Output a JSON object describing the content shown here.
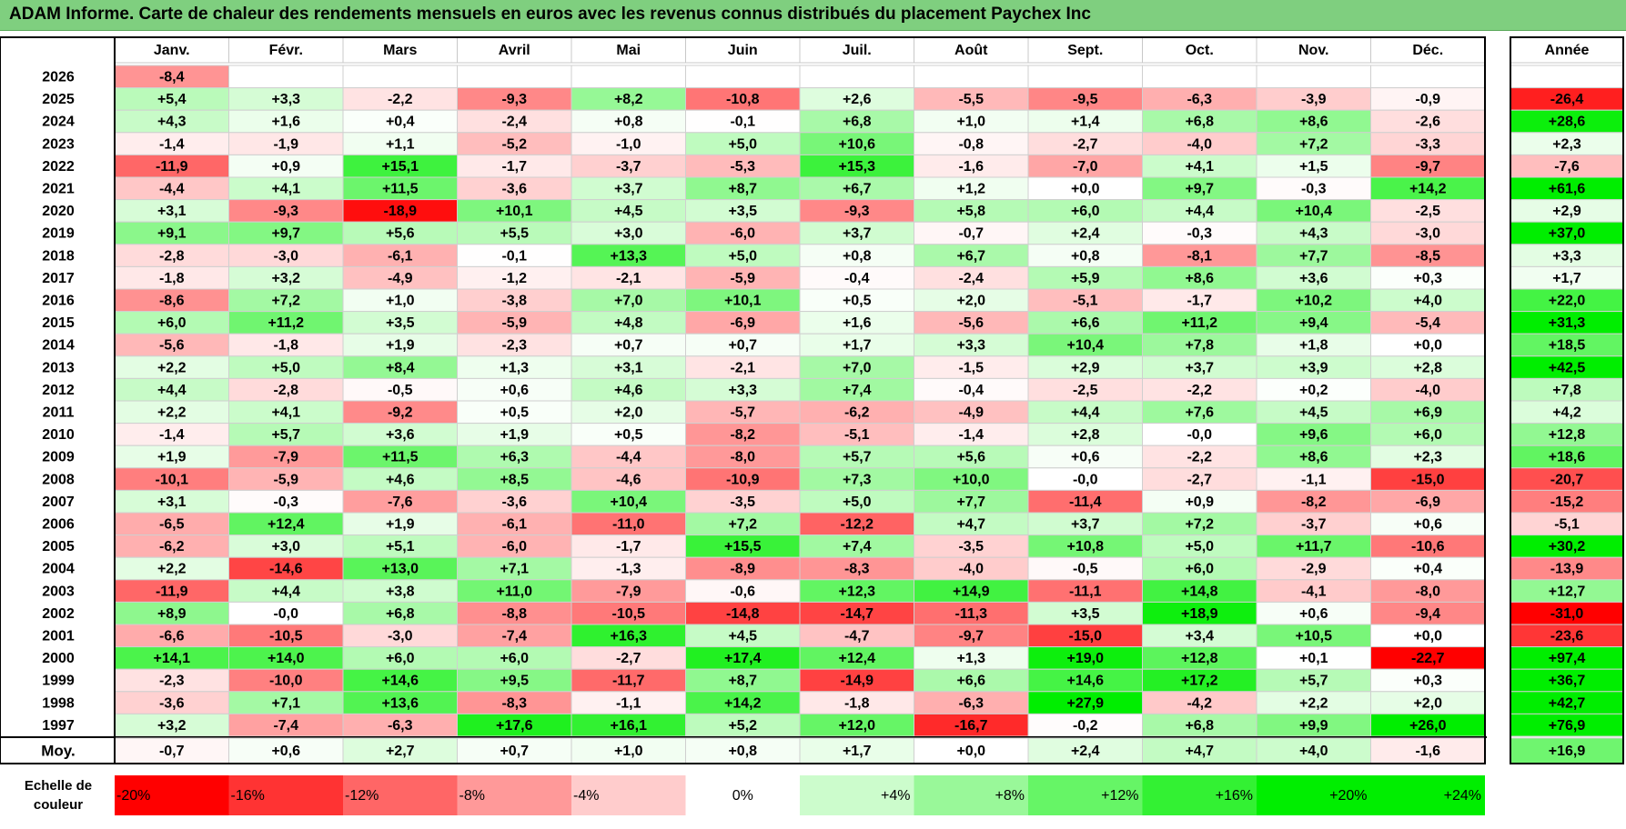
{
  "header": {
    "title": "ADAM Informe. Carte de chaleur des rendements mensuels en euros avec les revenus connus distribués du placement Paychex Inc"
  },
  "chart_data": {
    "type": "heatmap",
    "title": "ADAM Informe. Carte de chaleur des rendements mensuels en euros avec les revenus connus distribués du placement Paychex Inc",
    "months": [
      "Janv.",
      "Févr.",
      "Mars",
      "Avril",
      "Mai",
      "Juin",
      "Juil.",
      "Août",
      "Sept.",
      "Oct.",
      "Nov.",
      "Déc."
    ],
    "annual_label": "Année",
    "average_label": "Moy.",
    "scale_label_line1": "Echelle de",
    "scale_label_line2": "couleur",
    "rows": [
      {
        "year": "2026",
        "values": [
          "-8,4",
          null,
          null,
          null,
          null,
          null,
          null,
          null,
          null,
          null,
          null,
          null
        ],
        "annual": null
      },
      {
        "year": "2025",
        "values": [
          "+5,4",
          "+3,3",
          "-2,2",
          "-9,3",
          "+8,2",
          "-10,8",
          "+2,6",
          "-5,5",
          "-9,5",
          "-6,3",
          "-3,9",
          "-0,9"
        ],
        "annual": "-26,4"
      },
      {
        "year": "2024",
        "values": [
          "+4,3",
          "+1,6",
          "+0,4",
          "-2,4",
          "+0,8",
          "-0,1",
          "+6,8",
          "+1,0",
          "+1,4",
          "+6,8",
          "+8,6",
          "-2,6"
        ],
        "annual": "+28,6"
      },
      {
        "year": "2023",
        "values": [
          "-1,4",
          "-1,9",
          "+1,1",
          "-5,2",
          "-1,0",
          "+5,0",
          "+10,6",
          "-0,8",
          "-2,7",
          "-4,0",
          "+7,2",
          "-3,3"
        ],
        "annual": "+2,3"
      },
      {
        "year": "2022",
        "values": [
          "-11,9",
          "+0,9",
          "+15,1",
          "-1,7",
          "-3,7",
          "-5,3",
          "+15,3",
          "-1,6",
          "-7,0",
          "+4,1",
          "+1,5",
          "-9,7"
        ],
        "annual": "-7,6"
      },
      {
        "year": "2021",
        "values": [
          "-4,4",
          "+4,1",
          "+11,5",
          "-3,6",
          "+3,7",
          "+8,7",
          "+6,7",
          "+1,2",
          "+0,0",
          "+9,7",
          "-0,3",
          "+14,2"
        ],
        "annual": "+61,6"
      },
      {
        "year": "2020",
        "values": [
          "+3,1",
          "-9,3",
          "-18,9",
          "+10,1",
          "+4,5",
          "+3,5",
          "-9,3",
          "+5,8",
          "+6,0",
          "+4,4",
          "+10,4",
          "-2,5"
        ],
        "annual": "+2,9"
      },
      {
        "year": "2019",
        "values": [
          "+9,1",
          "+9,7",
          "+5,6",
          "+5,5",
          "+3,0",
          "-6,0",
          "+3,7",
          "-0,7",
          "+2,4",
          "-0,3",
          "+4,3",
          "-3,0"
        ],
        "annual": "+37,0"
      },
      {
        "year": "2018",
        "values": [
          "-2,8",
          "-3,0",
          "-6,1",
          "-0,1",
          "+13,3",
          "+5,0",
          "+0,8",
          "+6,7",
          "+0,8",
          "-8,1",
          "+7,7",
          "-8,5"
        ],
        "annual": "+3,3"
      },
      {
        "year": "2017",
        "values": [
          "-1,8",
          "+3,2",
          "-4,9",
          "-1,2",
          "-2,1",
          "-5,9",
          "-0,4",
          "-2,4",
          "+5,9",
          "+8,6",
          "+3,6",
          "+0,3"
        ],
        "annual": "+1,7"
      },
      {
        "year": "2016",
        "values": [
          "-8,6",
          "+7,2",
          "+1,0",
          "-3,8",
          "+7,0",
          "+10,1",
          "+0,5",
          "+2,0",
          "-5,1",
          "-1,7",
          "+10,2",
          "+4,0"
        ],
        "annual": "+22,0"
      },
      {
        "year": "2015",
        "values": [
          "+6,0",
          "+11,2",
          "+3,5",
          "-5,9",
          "+4,8",
          "-6,9",
          "+1,6",
          "-5,6",
          "+6,6",
          "+11,2",
          "+9,4",
          "-5,4"
        ],
        "annual": "+31,3"
      },
      {
        "year": "2014",
        "values": [
          "-5,6",
          "-1,8",
          "+1,9",
          "-2,3",
          "+0,7",
          "+0,7",
          "+1,7",
          "+3,3",
          "+10,4",
          "+7,8",
          "+1,8",
          "+0,0"
        ],
        "annual": "+18,5"
      },
      {
        "year": "2013",
        "values": [
          "+2,2",
          "+5,0",
          "+8,4",
          "+1,3",
          "+3,1",
          "-2,1",
          "+7,0",
          "-1,5",
          "+2,9",
          "+3,7",
          "+3,9",
          "+2,8"
        ],
        "annual": "+42,5"
      },
      {
        "year": "2012",
        "values": [
          "+4,4",
          "-2,8",
          "-0,5",
          "+0,6",
          "+4,6",
          "+3,3",
          "+7,4",
          "-0,4",
          "-2,5",
          "-2,2",
          "+0,2",
          "-4,0"
        ],
        "annual": "+7,8"
      },
      {
        "year": "2011",
        "values": [
          "+2,2",
          "+4,1",
          "-9,2",
          "+0,5",
          "+2,0",
          "-5,7",
          "-6,2",
          "-4,9",
          "+4,4",
          "+7,6",
          "+4,5",
          "+6,9"
        ],
        "annual": "+4,2"
      },
      {
        "year": "2010",
        "values": [
          "-1,4",
          "+5,7",
          "+3,6",
          "+1,9",
          "+0,5",
          "-8,2",
          "-5,1",
          "-1,4",
          "+2,8",
          "-0,0",
          "+9,6",
          "+6,0"
        ],
        "annual": "+12,8"
      },
      {
        "year": "2009",
        "values": [
          "+1,9",
          "-7,9",
          "+11,5",
          "+6,3",
          "-4,4",
          "-8,0",
          "+5,7",
          "+5,6",
          "+0,6",
          "-2,2",
          "+8,6",
          "+2,3"
        ],
        "annual": "+18,6"
      },
      {
        "year": "2008",
        "values": [
          "-10,1",
          "-5,9",
          "+4,6",
          "+8,5",
          "-4,6",
          "-10,9",
          "+7,3",
          "+10,0",
          "-0,0",
          "-2,7",
          "-1,1",
          "-15,0"
        ],
        "annual": "-20,7"
      },
      {
        "year": "2007",
        "values": [
          "+3,1",
          "-0,3",
          "-7,6",
          "-3,6",
          "+10,4",
          "-3,5",
          "+5,0",
          "+7,7",
          "-11,4",
          "+0,9",
          "-8,2",
          "-6,9"
        ],
        "annual": "-15,2"
      },
      {
        "year": "2006",
        "values": [
          "-6,5",
          "+12,4",
          "+1,9",
          "-6,1",
          "-11,0",
          "+7,2",
          "-12,2",
          "+4,7",
          "+3,7",
          "+7,2",
          "-3,7",
          "+0,6"
        ],
        "annual": "-5,1"
      },
      {
        "year": "2005",
        "values": [
          "-6,2",
          "+3,0",
          "+5,1",
          "-6,0",
          "-1,7",
          "+15,5",
          "+7,4",
          "-3,5",
          "+10,8",
          "+5,0",
          "+11,7",
          "-10,6"
        ],
        "annual": "+30,2"
      },
      {
        "year": "2004",
        "values": [
          "+2,2",
          "-14,6",
          "+13,0",
          "+7,1",
          "-1,3",
          "-8,9",
          "-8,3",
          "-4,0",
          "-0,5",
          "+6,0",
          "-2,9",
          "+0,4"
        ],
        "annual": "-13,9"
      },
      {
        "year": "2003",
        "values": [
          "-11,9",
          "+4,4",
          "+3,8",
          "+11,0",
          "-7,9",
          "-0,6",
          "+12,3",
          "+14,9",
          "-11,1",
          "+14,8",
          "-4,1",
          "-8,0"
        ],
        "annual": "+12,7"
      },
      {
        "year": "2002",
        "values": [
          "+8,9",
          "-0,0",
          "+6,8",
          "-8,8",
          "-10,5",
          "-14,8",
          "-14,7",
          "-11,3",
          "+3,5",
          "+18,9",
          "+0,6",
          "-9,4"
        ],
        "annual": "-31,0"
      },
      {
        "year": "2001",
        "values": [
          "-6,6",
          "-10,5",
          "-3,0",
          "-7,4",
          "+16,3",
          "+4,5",
          "-4,7",
          "-9,7",
          "-15,0",
          "+3,4",
          "+10,5",
          "+0,0"
        ],
        "annual": "-23,6"
      },
      {
        "year": "2000",
        "values": [
          "+14,1",
          "+14,0",
          "+6,0",
          "+6,0",
          "-2,7",
          "+17,4",
          "+12,4",
          "+1,3",
          "+19,0",
          "+12,8",
          "+0,1",
          "-22,7"
        ],
        "annual": "+97,4"
      },
      {
        "year": "1999",
        "values": [
          "-2,3",
          "-10,0",
          "+14,6",
          "+9,5",
          "-11,7",
          "+8,7",
          "-14,9",
          "+6,6",
          "+14,6",
          "+17,2",
          "+5,7",
          "+0,3"
        ],
        "annual": "+36,7"
      },
      {
        "year": "1998",
        "values": [
          "-3,6",
          "+7,1",
          "+13,6",
          "-8,3",
          "-1,1",
          "+14,2",
          "-1,8",
          "-6,3",
          "+27,9",
          "-4,2",
          "+2,2",
          "+2,0"
        ],
        "annual": "+42,7"
      },
      {
        "year": "1997",
        "values": [
          "+3,2",
          "-7,4",
          "-6,3",
          "+17,6",
          "+16,1",
          "+5,2",
          "+12,0",
          "-16,7",
          "-0,2",
          "+6,8",
          "+9,9",
          "+26,0"
        ],
        "annual": "+76,9"
      }
    ],
    "average": {
      "values": [
        "-0,7",
        "+0,6",
        "+2,7",
        "+0,7",
        "+1,0",
        "+0,8",
        "+1,7",
        "+0,0",
        "+2,4",
        "+4,7",
        "+4,0",
        "-1,6"
      ],
      "annual": "+16,9"
    },
    "scale": [
      {
        "label": "-20%",
        "value": -20
      },
      {
        "label": "-16%",
        "value": -16
      },
      {
        "label": "-12%",
        "value": -12
      },
      {
        "label": "-8%",
        "value": -8
      },
      {
        "label": "-4%",
        "value": -4
      },
      {
        "label": "0%",
        "value": 0
      },
      {
        "label": "+4%",
        "value": 4
      },
      {
        "label": "+8%",
        "value": 8
      },
      {
        "label": "+12%",
        "value": 12
      },
      {
        "label": "+16%",
        "value": 16
      },
      {
        "label": "+20%",
        "value": 20
      },
      {
        "label": "+24%",
        "value": 24
      }
    ],
    "colors": {
      "negative": "#ff0000",
      "neutral": "#ffffff",
      "positive": "#00ee00",
      "header_bg": "#7fcf7f"
    }
  }
}
